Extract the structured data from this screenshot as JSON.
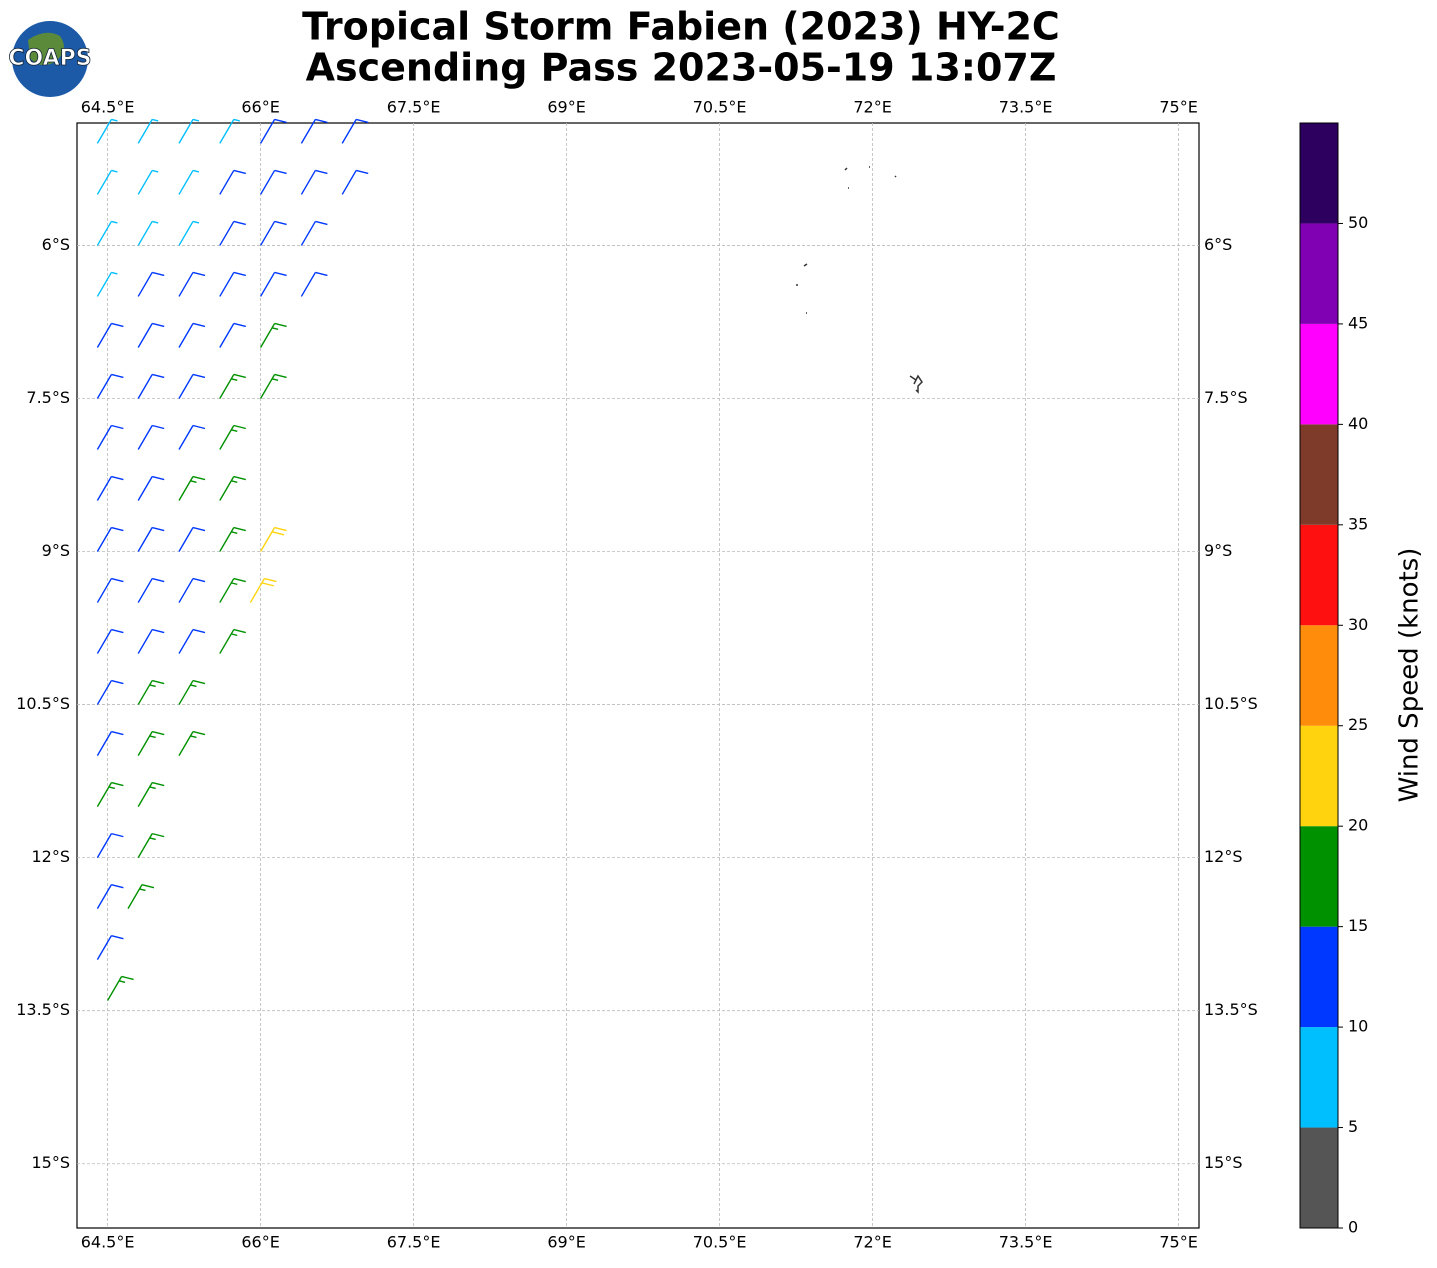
{
  "chart_data": {
    "type": "barbs",
    "title": [
      "Tropical Storm Fabien (2023) HY-2C",
      "Ascending Pass 2023-05-19 13:07Z"
    ],
    "logo": "COAPS",
    "xlim": [
      64.2,
      75.2
    ],
    "ylim": [
      -15.63,
      -4.8
    ],
    "xticks": [
      {
        "value": 64.5,
        "label": "64.5°E"
      },
      {
        "value": 66,
        "label": "66°E"
      },
      {
        "value": 67.5,
        "label": "67.5°E"
      },
      {
        "value": 69,
        "label": "69°E"
      },
      {
        "value": 70.5,
        "label": "70.5°E"
      },
      {
        "value": 72,
        "label": "72°E"
      },
      {
        "value": 73.5,
        "label": "73.5°E"
      },
      {
        "value": 75,
        "label": "75°E"
      }
    ],
    "yticks": [
      {
        "value": -6,
        "label": "6°S"
      },
      {
        "value": -7.5,
        "label": "7.5°S"
      },
      {
        "value": -9,
        "label": "9°S"
      },
      {
        "value": -10.5,
        "label": "10.5°S"
      },
      {
        "value": -12,
        "label": "12°S"
      },
      {
        "value": -13.5,
        "label": "13.5°S"
      },
      {
        "value": -15,
        "label": "15°S"
      }
    ],
    "grid": true,
    "barbs": {
      "lon": [
        64.4,
        64.8,
        65.2,
        65.6,
        66.0,
        66.4,
        66.8,
        64.4,
        64.8,
        65.2,
        65.6,
        66.0,
        66.4,
        66.8,
        64.4,
        64.8,
        65.2,
        65.6,
        66.0,
        66.4,
        64.4,
        64.8,
        65.2,
        65.6,
        66.0,
        66.4,
        64.4,
        64.8,
        65.2,
        65.6,
        66.0,
        64.4,
        64.8,
        65.2,
        65.6,
        66.0,
        64.4,
        64.8,
        65.2,
        65.6,
        64.4,
        64.8,
        65.2,
        65.6,
        64.4,
        64.8,
        65.2,
        65.6,
        66.0,
        64.4,
        64.8,
        65.2,
        65.6,
        65.9,
        64.4,
        64.8,
        65.2,
        65.6,
        64.4,
        64.8,
        65.2,
        64.4,
        64.8,
        65.2,
        64.4,
        64.8,
        64.4,
        64.8,
        64.4,
        64.7,
        64.4,
        64.5
      ],
      "lat": [
        -5,
        -5,
        -5,
        -5,
        -5,
        -5,
        -5,
        -5.5,
        -5.5,
        -5.5,
        -5.5,
        -5.5,
        -5.5,
        -5.5,
        -6,
        -6,
        -6,
        -6,
        -6,
        -6,
        -6.5,
        -6.5,
        -6.5,
        -6.5,
        -6.5,
        -6.5,
        -7,
        -7,
        -7,
        -7,
        -7,
        -7.5,
        -7.5,
        -7.5,
        -7.5,
        -7.5,
        -8,
        -8,
        -8,
        -8,
        -8.5,
        -8.5,
        -8.5,
        -8.5,
        -9,
        -9,
        -9,
        -9,
        -9,
        -9.5,
        -9.5,
        -9.5,
        -9.5,
        -9.5,
        -10,
        -10,
        -10,
        -10,
        -10.5,
        -10.5,
        -10.5,
        -11,
        -11,
        -11,
        -11.5,
        -11.5,
        -12,
        -12,
        -12.5,
        -12.5,
        -13,
        -13.4
      ],
      "speed": [
        8,
        8,
        9,
        9,
        12,
        12,
        12,
        8,
        8,
        9,
        11,
        12,
        12,
        12,
        8,
        9,
        9,
        12,
        12,
        12,
        9,
        12,
        12,
        12,
        12,
        14,
        12,
        12,
        13,
        14,
        17,
        12,
        12,
        13,
        17,
        17,
        12,
        13,
        14,
        17,
        12,
        13,
        17,
        18,
        12,
        13,
        14,
        17,
        22,
        12,
        13,
        13,
        16,
        21,
        12,
        13,
        13,
        16,
        12,
        16,
        16,
        12,
        16,
        16,
        16,
        16,
        14,
        17,
        13,
        16,
        13,
        17
      ]
    },
    "colorbar": {
      "label": "Wind Speed (knots)",
      "lim": [
        0,
        55
      ],
      "ticks": [
        0,
        5,
        10,
        15,
        20,
        25,
        30,
        35,
        40,
        45,
        50
      ],
      "colors": [
        "#555555",
        "#00bfff",
        "#0038ff",
        "#009100",
        "#ffd40f",
        "#ff8c0a",
        "#ff1010",
        "#7f3b29",
        "#ff00ff",
        "#8000b3",
        "#2d0060"
      ]
    }
  }
}
